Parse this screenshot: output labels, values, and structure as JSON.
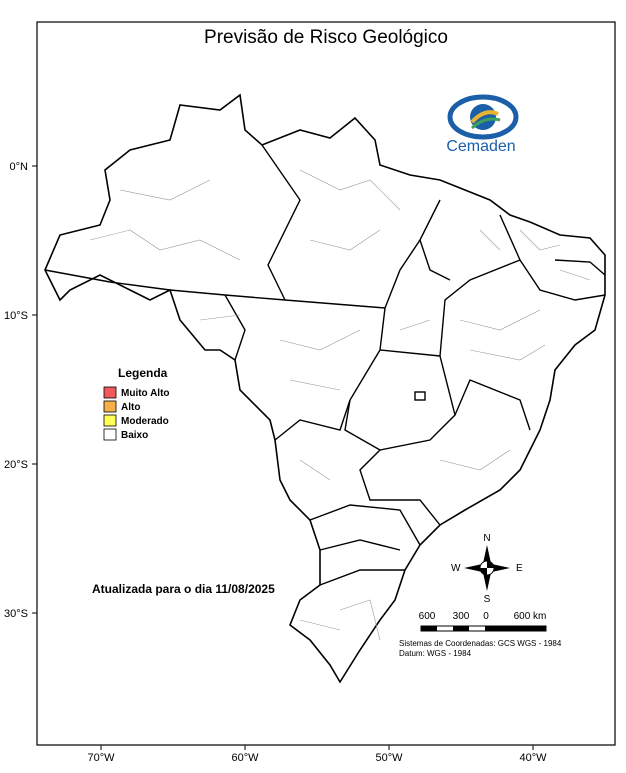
{
  "map": {
    "title": "Previsão de Risco Geológico",
    "logo_text": "Cemaden",
    "x_ticks": [
      {
        "value": -70,
        "label": "70°W"
      },
      {
        "value": -60,
        "label": "60°W"
      },
      {
        "value": -50,
        "label": "50°W"
      },
      {
        "value": -40,
        "label": "40°W"
      }
    ],
    "y_ticks": [
      {
        "value": 0,
        "label": "0°N"
      },
      {
        "value": -10,
        "label": "10°S"
      },
      {
        "value": -20,
        "label": "20°S"
      },
      {
        "value": -30,
        "label": "30°S"
      }
    ],
    "legend": {
      "title": "Legenda",
      "items": [
        {
          "label": "Muito Alto",
          "color": "#f05a5a"
        },
        {
          "label": "Alto",
          "color": "#f5b04a"
        },
        {
          "label": "Moderado",
          "color": "#ffff55"
        },
        {
          "label": "Baixo",
          "color": "#ffffff"
        }
      ]
    },
    "updated": "Atualizada para o dia 11/08/2025",
    "compass": {
      "n": "N",
      "s": "S",
      "e": "E",
      "w": "W"
    },
    "scale_labels": [
      "600",
      "300",
      "0",
      "600 km"
    ],
    "crs": "Sistemas de Coordenadas: GCS WGS - 1984",
    "datum": "Datum: WGS - 1984"
  }
}
